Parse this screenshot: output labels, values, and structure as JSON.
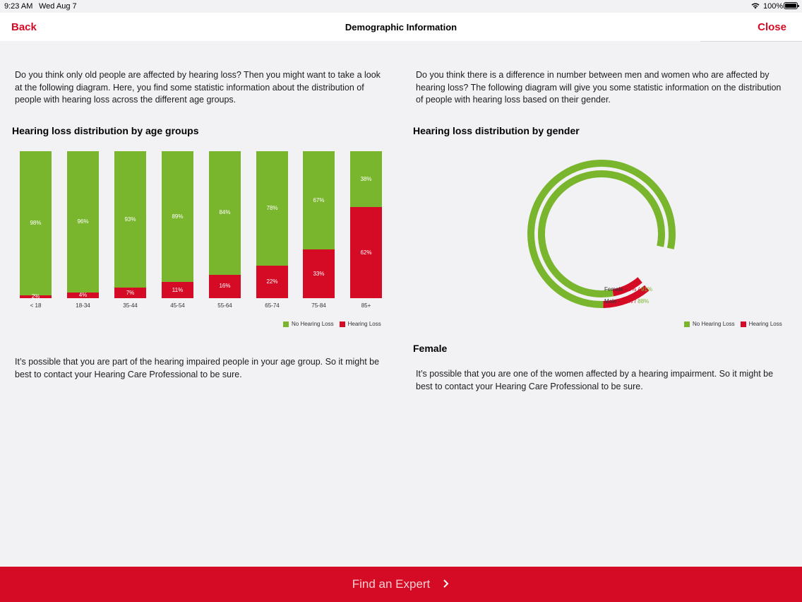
{
  "status_bar": {
    "time": "9:23 AM",
    "date": "Wed Aug 7",
    "battery": "100%"
  },
  "nav": {
    "back": "Back",
    "title": "Demographic Information",
    "close": "Close"
  },
  "left": {
    "intro": "Do you think only old people are affected by hearing loss? Then you might want to take a look at the following diagram. Here, you find some statistic information about the distribution of people with hearing loss across the different age groups.",
    "heading": "Hearing loss distribution by age groups",
    "outro": "It’s possible that you are part of the hearing impaired people in your age group. So it might be best to contact your Hearing Care Professional to be sure."
  },
  "right": {
    "intro": "Do you think there is a difference in number between men and women who are affected by hearing loss? The following diagram will give you some statistic information on the distribution of people with hearing loss based on their gender.",
    "heading": "Hearing loss distribution by gender",
    "sub_heading": "Female",
    "outro": "It’s possible that you are one of the women affected by a hearing impairment. So it might be best to contact your Hearing Care Professional to be sure."
  },
  "legend": {
    "no_loss": "No Hearing Loss",
    "loss": "Hearing Loss"
  },
  "colors": {
    "accent": "#d50a24",
    "green": "#79b52d"
  },
  "chart_data": [
    {
      "type": "bar",
      "stacked": true,
      "categories": [
        "< 18",
        "18-34",
        "35-44",
        "45-54",
        "55-64",
        "65-74",
        "75-84",
        "85+"
      ],
      "series": [
        {
          "name": "No Hearing Loss",
          "values": [
            98,
            96,
            93,
            89,
            84,
            78,
            67,
            38
          ],
          "labels": [
            "98%",
            "96%",
            "93%",
            "89%",
            "84%",
            "78%",
            "67%",
            "38%"
          ]
        },
        {
          "name": "Hearing Loss",
          "values": [
            2,
            4,
            7,
            11,
            16,
            22,
            33,
            62
          ],
          "labels": [
            "2%",
            "4%",
            "7%",
            "11%",
            "16%",
            "22%",
            "33%",
            "62%"
          ]
        }
      ],
      "ylim": [
        0,
        100
      ],
      "legend_position": "bottom-right"
    },
    {
      "type": "pie",
      "style": "concentric rings",
      "rings": [
        {
          "name": "Female - ",
          "loss": 9,
          "no_loss": 91,
          "loss_label": "9%",
          "no_loss_label": "91%"
        },
        {
          "name": "Male - ",
          "loss": 12,
          "no_loss": 88,
          "loss_label": "12%",
          "no_loss_label": "88%"
        }
      ],
      "separator": " / ",
      "legend_position": "bottom-right"
    }
  ],
  "footer": {
    "label": "Find an Expert",
    "chevron_icon": "chevron-right-icon"
  }
}
